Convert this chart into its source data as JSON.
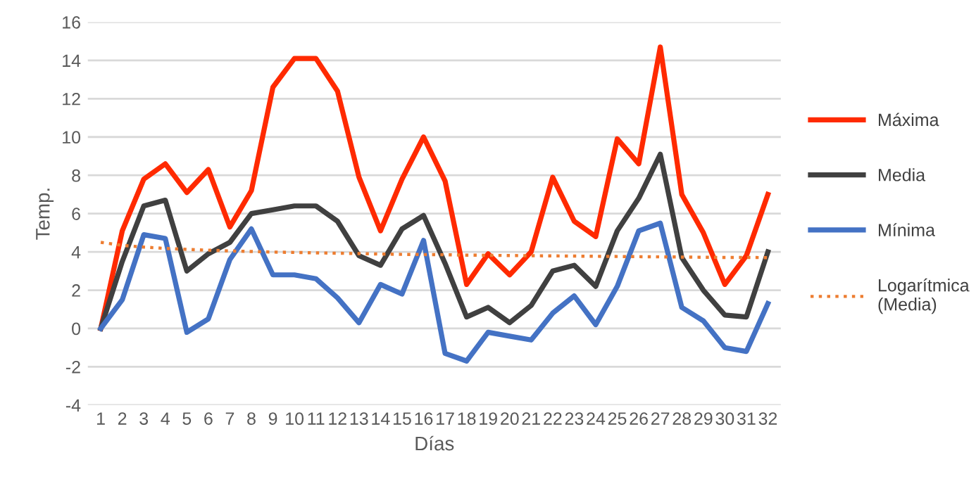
{
  "chart_data": {
    "type": "line",
    "xlabel": "Días",
    "ylabel": "Temp.",
    "categories": [
      "1",
      "2",
      "3",
      "4",
      "5",
      "6",
      "7",
      "8",
      "9",
      "10",
      "11",
      "12",
      "13",
      "14",
      "15",
      "16",
      "17",
      "18",
      "19",
      "20",
      "21",
      "22",
      "23",
      "24",
      "25",
      "26",
      "27",
      "28",
      "29",
      "30",
      "31",
      "32"
    ],
    "series": [
      {
        "name": "Máxima",
        "color": "#ff2a00",
        "values": [
          0,
          5.1,
          7.8,
          8.6,
          7.1,
          8.3,
          5.3,
          7.2,
          12.6,
          14.1,
          14.1,
          12.4,
          7.9,
          5.1,
          7.8,
          10.0,
          7.7,
          2.3,
          3.9,
          2.8,
          4.0,
          7.9,
          5.6,
          4.8,
          9.9,
          8.6,
          14.7,
          7.0,
          5.0,
          2.3,
          3.8,
          7.0
        ]
      },
      {
        "name": "Media",
        "color": "#404040",
        "values": [
          0,
          3.5,
          6.4,
          6.7,
          3.0,
          3.9,
          4.5,
          6.0,
          6.2,
          6.4,
          6.4,
          5.6,
          3.8,
          3.3,
          5.2,
          5.9,
          3.4,
          0.6,
          1.1,
          0.3,
          1.2,
          3.0,
          3.3,
          2.2,
          5.1,
          6.8,
          9.1,
          3.7,
          2.0,
          0.7,
          0.6,
          4.0
        ]
      },
      {
        "name": "Mínima",
        "color": "#4472c4",
        "values": [
          0,
          1.5,
          4.9,
          4.7,
          -0.2,
          0.5,
          3.6,
          5.2,
          2.8,
          2.8,
          2.6,
          1.6,
          0.3,
          2.3,
          1.8,
          4.6,
          -1.3,
          -1.7,
          -0.2,
          -0.4,
          -0.6,
          0.8,
          1.7,
          0.2,
          2.2,
          5.1,
          5.5,
          1.1,
          0.4,
          -1.0,
          -1.2,
          1.3
        ]
      },
      {
        "name": "Logarítmica\n(Media)",
        "color": "#ed7d31",
        "line_style": "dotted",
        "values": [
          4.5,
          4.34,
          4.25,
          4.18,
          4.13,
          4.09,
          4.05,
          4.02,
          3.99,
          3.97,
          3.95,
          3.93,
          3.91,
          3.89,
          3.87,
          3.86,
          3.85,
          3.83,
          3.82,
          3.81,
          3.8,
          3.79,
          3.78,
          3.77,
          3.76,
          3.75,
          3.74,
          3.73,
          3.72,
          3.71,
          3.71,
          3.7
        ]
      }
    ],
    "ylim": [
      -4,
      16
    ],
    "yticks": [
      -4,
      -2,
      0,
      2,
      4,
      6,
      8,
      10,
      12,
      14,
      16
    ],
    "grid": "y",
    "legend": "right",
    "marker": "none",
    "line_style": "solid"
  }
}
